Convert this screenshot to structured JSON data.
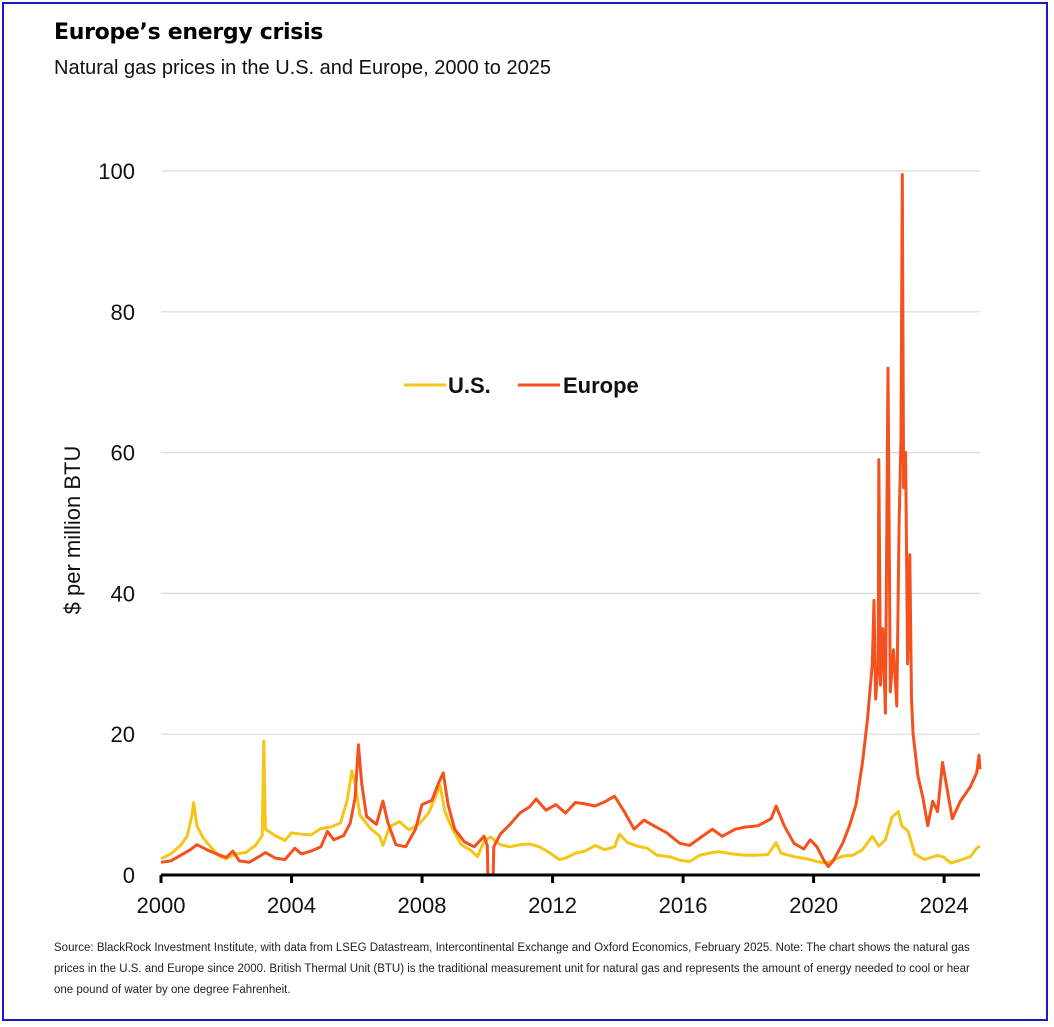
{
  "header": {
    "title": "Europe’s energy crisis",
    "subtitle": "Natural gas prices in the U.S. and Europe, 2000 to 2025"
  },
  "footnote": "Source: BlackRock Investment Institute, with data from LSEG Datastream, Intercontinental Exchange and Oxford Economics, February 2025. Note: The chart shows the natural gas prices in the U.S. and Europe since 2000. British Thermal Unit (BTU) is the traditional measurement unit for natural gas and represents the amount of energy needed to cool or hear one pound of water by one degree Fahrenheit.",
  "colors": {
    "us": "#f5c518",
    "europe": "#f4511e",
    "grid": "#d9d9d9",
    "axis": "#000000",
    "frame": "#1a1ac8"
  },
  "chart_data": {
    "type": "line",
    "title": "Europe’s energy crisis",
    "subtitle": "Natural gas prices in the U.S. and Europe, 2000 to 2025",
    "xlabel": "",
    "ylabel": "$ per million BTU",
    "xlim": [
      2000,
      2025.1
    ],
    "ylim": [
      0,
      100
    ],
    "x_ticks": [
      2000,
      2004,
      2008,
      2012,
      2016,
      2020,
      2024
    ],
    "x_tick_labels": [
      "2000",
      "2004",
      "2008",
      "2012",
      "2016",
      "2020",
      "2024"
    ],
    "y_ticks": [
      0,
      20,
      40,
      60,
      80,
      100
    ],
    "y_tick_labels": [
      "0",
      "20",
      "40",
      "60",
      "80",
      "100"
    ],
    "grid": "horizontal",
    "legend": {
      "placement": "upper-center",
      "entries": [
        "U.S.",
        "Europe"
      ]
    },
    "series": [
      {
        "name": "U.S.",
        "color": "#f5c518",
        "points": [
          [
            2000.0,
            2.3
          ],
          [
            2000.3,
            3.0
          ],
          [
            2000.6,
            4.2
          ],
          [
            2000.8,
            5.5
          ],
          [
            2000.95,
            8.5
          ],
          [
            2001.0,
            10.3
          ],
          [
            2001.1,
            7.0
          ],
          [
            2001.3,
            5.2
          ],
          [
            2001.6,
            3.6
          ],
          [
            2001.8,
            2.6
          ],
          [
            2002.0,
            2.3
          ],
          [
            2002.3,
            3.0
          ],
          [
            2002.6,
            3.2
          ],
          [
            2002.9,
            4.2
          ],
          [
            2003.1,
            5.6
          ],
          [
            2003.15,
            19.0
          ],
          [
            2003.2,
            6.5
          ],
          [
            2003.5,
            5.6
          ],
          [
            2003.8,
            4.9
          ],
          [
            2004.0,
            6.0
          ],
          [
            2004.3,
            5.8
          ],
          [
            2004.6,
            5.7
          ],
          [
            2004.9,
            6.6
          ],
          [
            2005.2,
            6.8
          ],
          [
            2005.5,
            7.4
          ],
          [
            2005.7,
            10.5
          ],
          [
            2005.85,
            14.8
          ],
          [
            2005.95,
            13.0
          ],
          [
            2006.1,
            8.5
          ],
          [
            2006.4,
            6.7
          ],
          [
            2006.7,
            5.5
          ],
          [
            2006.8,
            4.2
          ],
          [
            2007.0,
            6.8
          ],
          [
            2007.3,
            7.6
          ],
          [
            2007.6,
            6.4
          ],
          [
            2007.9,
            7.2
          ],
          [
            2008.2,
            8.8
          ],
          [
            2008.45,
            11.5
          ],
          [
            2008.55,
            12.8
          ],
          [
            2008.7,
            9.0
          ],
          [
            2008.9,
            6.8
          ],
          [
            2009.2,
            4.3
          ],
          [
            2009.5,
            3.5
          ],
          [
            2009.7,
            2.6
          ],
          [
            2009.9,
            4.8
          ],
          [
            2010.1,
            5.4
          ],
          [
            2010.4,
            4.3
          ],
          [
            2010.7,
            4.0
          ],
          [
            2011.0,
            4.3
          ],
          [
            2011.3,
            4.4
          ],
          [
            2011.6,
            4.0
          ],
          [
            2011.9,
            3.2
          ],
          [
            2012.2,
            2.2
          ],
          [
            2012.4,
            2.4
          ],
          [
            2012.7,
            3.1
          ],
          [
            2013.0,
            3.4
          ],
          [
            2013.3,
            4.2
          ],
          [
            2013.6,
            3.6
          ],
          [
            2013.9,
            4.0
          ],
          [
            2014.05,
            5.8
          ],
          [
            2014.3,
            4.6
          ],
          [
            2014.6,
            4.1
          ],
          [
            2014.9,
            3.8
          ],
          [
            2015.2,
            2.8
          ],
          [
            2015.6,
            2.6
          ],
          [
            2015.9,
            2.1
          ],
          [
            2016.2,
            1.9
          ],
          [
            2016.5,
            2.8
          ],
          [
            2016.9,
            3.2
          ],
          [
            2017.1,
            3.3
          ],
          [
            2017.5,
            3.0
          ],
          [
            2017.9,
            2.8
          ],
          [
            2018.2,
            2.8
          ],
          [
            2018.6,
            2.9
          ],
          [
            2018.85,
            4.6
          ],
          [
            2019.0,
            3.1
          ],
          [
            2019.4,
            2.6
          ],
          [
            2019.8,
            2.3
          ],
          [
            2020.1,
            1.9
          ],
          [
            2020.4,
            1.7
          ],
          [
            2020.7,
            2.3
          ],
          [
            2020.9,
            2.7
          ],
          [
            2021.2,
            2.8
          ],
          [
            2021.5,
            3.6
          ],
          [
            2021.8,
            5.5
          ],
          [
            2022.0,
            4.1
          ],
          [
            2022.2,
            5.0
          ],
          [
            2022.4,
            8.2
          ],
          [
            2022.6,
            9.0
          ],
          [
            2022.7,
            7.0
          ],
          [
            2022.9,
            6.2
          ],
          [
            2023.1,
            3.0
          ],
          [
            2023.4,
            2.2
          ],
          [
            2023.8,
            2.8
          ],
          [
            2024.0,
            2.5
          ],
          [
            2024.2,
            1.7
          ],
          [
            2024.5,
            2.1
          ],
          [
            2024.8,
            2.6
          ],
          [
            2025.0,
            3.8
          ],
          [
            2025.1,
            4.1
          ]
        ]
      },
      {
        "name": "Europe",
        "color": "#f4511e",
        "points": [
          [
            2000.0,
            1.8
          ],
          [
            2000.3,
            2.0
          ],
          [
            2000.6,
            2.8
          ],
          [
            2000.9,
            3.6
          ],
          [
            2001.1,
            4.3
          ],
          [
            2001.4,
            3.6
          ],
          [
            2001.7,
            3.0
          ],
          [
            2002.0,
            2.5
          ],
          [
            2002.2,
            3.4
          ],
          [
            2002.4,
            2.0
          ],
          [
            2002.7,
            1.8
          ],
          [
            2003.0,
            2.6
          ],
          [
            2003.2,
            3.2
          ],
          [
            2003.5,
            2.4
          ],
          [
            2003.8,
            2.2
          ],
          [
            2004.1,
            3.8
          ],
          [
            2004.3,
            3.0
          ],
          [
            2004.6,
            3.4
          ],
          [
            2004.9,
            4.0
          ],
          [
            2005.1,
            6.2
          ],
          [
            2005.3,
            5.0
          ],
          [
            2005.6,
            5.6
          ],
          [
            2005.8,
            7.4
          ],
          [
            2005.95,
            11.0
          ],
          [
            2006.05,
            18.5
          ],
          [
            2006.15,
            13.0
          ],
          [
            2006.3,
            8.3
          ],
          [
            2006.6,
            7.2
          ],
          [
            2006.8,
            10.5
          ],
          [
            2006.95,
            7.5
          ],
          [
            2007.2,
            4.3
          ],
          [
            2007.5,
            4.0
          ],
          [
            2007.8,
            6.5
          ],
          [
            2008.0,
            10.0
          ],
          [
            2008.3,
            10.6
          ],
          [
            2008.5,
            13.0
          ],
          [
            2008.65,
            14.5
          ],
          [
            2008.8,
            10.0
          ],
          [
            2009.0,
            6.5
          ],
          [
            2009.3,
            4.7
          ],
          [
            2009.6,
            4.0
          ],
          [
            2009.9,
            5.5
          ],
          [
            2010.0,
            4.2
          ],
          [
            2010.02,
            0.0
          ],
          [
            2010.18,
            0.0
          ],
          [
            2010.2,
            4.0
          ],
          [
            2010.4,
            5.8
          ],
          [
            2010.7,
            7.2
          ],
          [
            2011.0,
            8.8
          ],
          [
            2011.3,
            9.7
          ],
          [
            2011.5,
            10.8
          ],
          [
            2011.8,
            9.2
          ],
          [
            2012.1,
            10.0
          ],
          [
            2012.4,
            8.8
          ],
          [
            2012.7,
            10.3
          ],
          [
            2013.0,
            10.1
          ],
          [
            2013.3,
            9.8
          ],
          [
            2013.6,
            10.4
          ],
          [
            2013.9,
            11.2
          ],
          [
            2014.2,
            9.0
          ],
          [
            2014.5,
            6.5
          ],
          [
            2014.8,
            7.8
          ],
          [
            2015.1,
            7.0
          ],
          [
            2015.5,
            6.0
          ],
          [
            2015.9,
            4.5
          ],
          [
            2016.2,
            4.2
          ],
          [
            2016.5,
            5.2
          ],
          [
            2016.9,
            6.5
          ],
          [
            2017.2,
            5.5
          ],
          [
            2017.6,
            6.5
          ],
          [
            2017.9,
            6.8
          ],
          [
            2018.3,
            7.0
          ],
          [
            2018.7,
            8.0
          ],
          [
            2018.85,
            9.8
          ],
          [
            2019.1,
            7.0
          ],
          [
            2019.4,
            4.5
          ],
          [
            2019.7,
            3.7
          ],
          [
            2019.9,
            5.0
          ],
          [
            2020.1,
            4.0
          ],
          [
            2020.3,
            2.2
          ],
          [
            2020.45,
            1.2
          ],
          [
            2020.6,
            2.0
          ],
          [
            2020.9,
            4.6
          ],
          [
            2021.1,
            7.0
          ],
          [
            2021.3,
            10.0
          ],
          [
            2021.5,
            16.0
          ],
          [
            2021.65,
            22.0
          ],
          [
            2021.8,
            30.0
          ],
          [
            2021.85,
            39.0
          ],
          [
            2021.9,
            25.0
          ],
          [
            2021.98,
            30.0
          ],
          [
            2022.0,
            59.0
          ],
          [
            2022.05,
            27.0
          ],
          [
            2022.12,
            35.0
          ],
          [
            2022.2,
            23.0
          ],
          [
            2022.28,
            72.0
          ],
          [
            2022.35,
            26.0
          ],
          [
            2022.45,
            32.0
          ],
          [
            2022.55,
            24.0
          ],
          [
            2022.62,
            50.0
          ],
          [
            2022.68,
            62.0
          ],
          [
            2022.72,
            99.5
          ],
          [
            2022.76,
            55.0
          ],
          [
            2022.82,
            60.0
          ],
          [
            2022.88,
            30.0
          ],
          [
            2022.95,
            45.5
          ],
          [
            2023.0,
            25.0
          ],
          [
            2023.05,
            20.0
          ],
          [
            2023.2,
            14.0
          ],
          [
            2023.35,
            11.0
          ],
          [
            2023.5,
            7.0
          ],
          [
            2023.65,
            10.5
          ],
          [
            2023.8,
            9.0
          ],
          [
            2023.95,
            16.0
          ],
          [
            2024.1,
            12.0
          ],
          [
            2024.25,
            8.0
          ],
          [
            2024.5,
            10.5
          ],
          [
            2024.8,
            12.5
          ],
          [
            2025.0,
            14.5
          ],
          [
            2025.07,
            17.0
          ],
          [
            2025.1,
            15.0
          ]
        ]
      }
    ]
  }
}
